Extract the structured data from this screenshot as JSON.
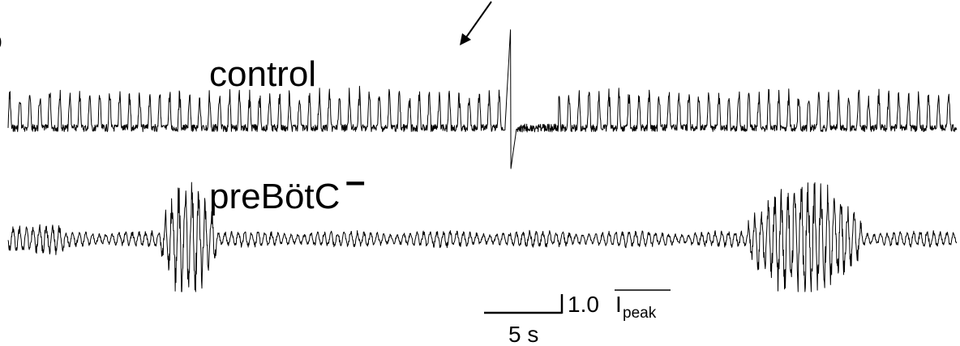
{
  "chart_data": {
    "type": "line",
    "panel_letter": "b",
    "series": [
      {
        "name": "control",
        "pattern": "regular rhythmic bursts",
        "burst_count_approx": 95,
        "special_events": [
          {
            "type": "large augmented burst (sigh)",
            "marked_by": "arrow",
            "relative_time_fraction": 0.53
          }
        ]
      },
      {
        "name": "preBötC",
        "name_superscript": "–",
        "pattern": "irregular, reduced-amplitude activity with intermittent bursting episodes",
        "episodes": [
          {
            "start_fraction": 0.16,
            "end_fraction": 0.22
          },
          {
            "start_fraction": 0.78,
            "end_fraction": 0.9
          }
        ]
      }
    ],
    "scale_bar": {
      "time_label": "5 s",
      "amplitude_value": "1.0",
      "amplitude_unit": "I",
      "amplitude_unit_subscript": "peak",
      "amplitude_unit_overbar": true
    },
    "grid": false,
    "axes_visible": false
  }
}
